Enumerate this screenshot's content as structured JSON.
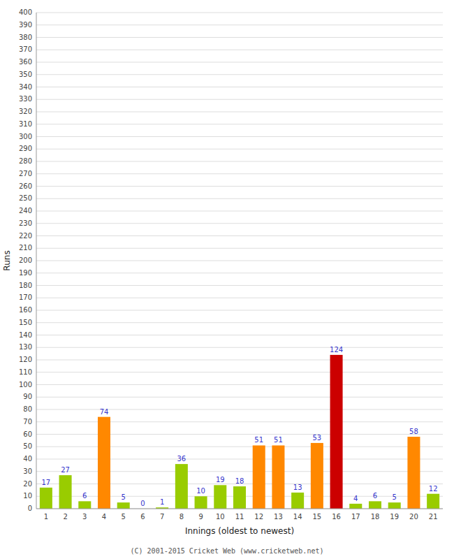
{
  "chart_data": {
    "type": "bar",
    "xlabel": "Innings (oldest to newest)",
    "ylabel": "Runs",
    "footer": "(C) 2001-2015 Cricket Web (www.cricketweb.net)",
    "categories": [
      "1",
      "2",
      "3",
      "4",
      "5",
      "6",
      "7",
      "8",
      "9",
      "10",
      "11",
      "12",
      "13",
      "14",
      "15",
      "16",
      "17",
      "18",
      "19",
      "20",
      "21"
    ],
    "values": [
      17,
      27,
      6,
      74,
      5,
      0,
      1,
      36,
      10,
      19,
      18,
      51,
      51,
      13,
      53,
      124,
      4,
      6,
      5,
      58,
      12
    ],
    "colors": [
      "#99cc00",
      "#99cc00",
      "#99cc00",
      "#ff8800",
      "#99cc00",
      "#99cc00",
      "#99cc00",
      "#99cc00",
      "#99cc00",
      "#99cc00",
      "#99cc00",
      "#ff8800",
      "#ff8800",
      "#99cc00",
      "#ff8800",
      "#cc0000",
      "#99cc00",
      "#99cc00",
      "#99cc00",
      "#ff8800",
      "#99cc00"
    ],
    "ylim": [
      0,
      400
    ],
    "yticks": [
      0,
      10,
      20,
      30,
      40,
      50,
      60,
      70,
      80,
      90,
      100,
      110,
      120,
      130,
      140,
      150,
      160,
      170,
      180,
      190,
      200,
      210,
      220,
      230,
      240,
      250,
      260,
      270,
      280,
      290,
      300,
      310,
      320,
      330,
      340,
      350,
      360,
      370,
      380,
      390,
      400
    ],
    "grid": true,
    "data_labels": true
  }
}
